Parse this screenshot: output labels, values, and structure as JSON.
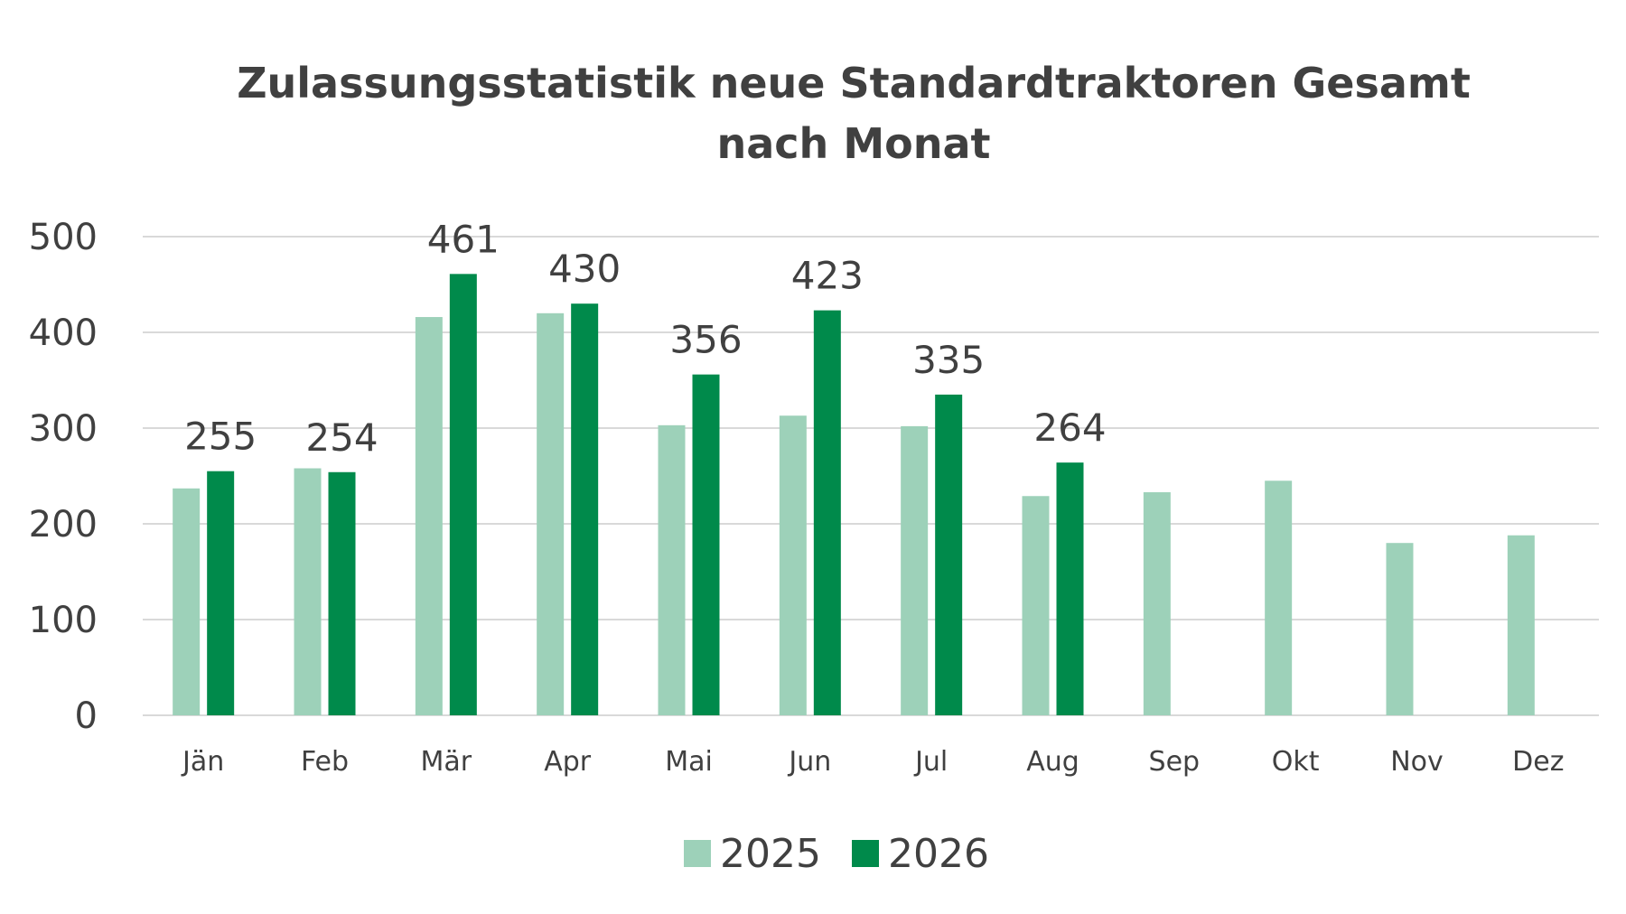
{
  "chart_data": {
    "type": "bar",
    "title": "Zulassungsstatistik neue Standardtraktoren Gesamt",
    "title_line2": "nach Monat",
    "categories": [
      "Jän",
      "Feb",
      "Mär",
      "Apr",
      "Mai",
      "Jun",
      "Jul",
      "Aug",
      "Sep",
      "Okt",
      "Nov",
      "Dez"
    ],
    "series": [
      {
        "name": "2025",
        "color": "#9dd1b9",
        "values": [
          237,
          258,
          416,
          420,
          303,
          313,
          302,
          229,
          233,
          245,
          180,
          188
        ],
        "show_labels": false
      },
      {
        "name": "2026",
        "color": "#008a4b",
        "values": [
          255,
          254,
          461,
          430,
          356,
          423,
          335,
          264,
          null,
          null,
          null,
          null
        ],
        "show_labels": true
      }
    ],
    "ylim": [
      0,
      500
    ],
    "yticks": [
      0,
      100,
      200,
      300,
      400,
      500
    ],
    "grid": true,
    "legend": "bottom",
    "xlabel": "",
    "ylabel": ""
  }
}
